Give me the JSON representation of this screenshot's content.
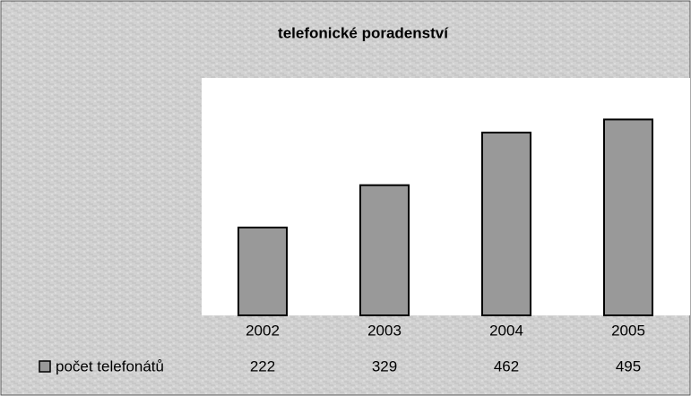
{
  "chart_data": {
    "type": "bar",
    "title": "telefonické poradenství",
    "categories": [
      "2002",
      "2003",
      "2004",
      "2005"
    ],
    "series": [
      {
        "name": "počet telefonátů",
        "color": "#999999",
        "values": [
          222,
          329,
          462,
          495
        ]
      }
    ],
    "ylim": [
      0,
      600
    ]
  }
}
